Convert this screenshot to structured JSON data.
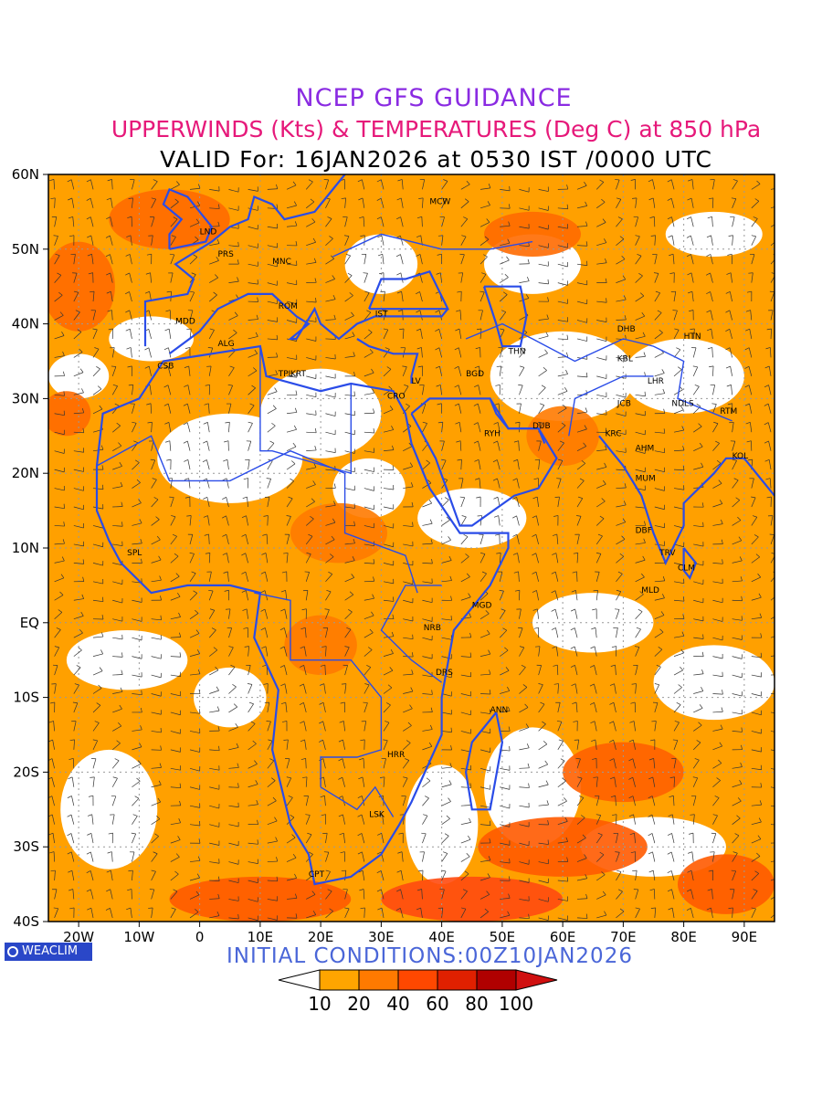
{
  "titles": {
    "line1": "NCEP GFS GUIDANCE",
    "line2": "UPPERWINDS (Kts) & TEMPERATURES (Deg C) at 850 hPa",
    "line3": "VALID For: 16JAN2026 at 0530 IST /0000 UTC"
  },
  "initial_conditions": "INITIAL CONDITIONS:00Z10JAN2026",
  "logo": "WEACLIM",
  "lat_labels": [
    "60N",
    "50N",
    "40N",
    "30N",
    "20N",
    "10N",
    "EQ",
    "10S",
    "20S",
    "30S",
    "40S"
  ],
  "lon_labels": [
    "20W",
    "10W",
    "0",
    "10E",
    "20E",
    "30E",
    "40E",
    "50E",
    "60E",
    "70E",
    "80E",
    "90E"
  ],
  "colorbar": {
    "labels": [
      "10",
      "20",
      "40",
      "60",
      "80",
      "100"
    ],
    "colors": [
      "#ffffff",
      "#ffa500",
      "#ff7a00",
      "#ff4800",
      "#e02000",
      "#b00000",
      "#d01010"
    ]
  },
  "colors": {
    "shade1": "#ffa000",
    "shade2": "#ff7000",
    "shade3": "#ff4a10",
    "coast": "#2a4ce8"
  },
  "stations": [
    {
      "name": "MCW",
      "lon": 38,
      "lat": 56
    },
    {
      "name": "LND",
      "lon": 0,
      "lat": 52
    },
    {
      "name": "PRS",
      "lon": 3,
      "lat": 49
    },
    {
      "name": "MNC",
      "lon": 12,
      "lat": 48
    },
    {
      "name": "ROM",
      "lon": 13,
      "lat": 42
    },
    {
      "name": "IST",
      "lon": 29,
      "lat": 41
    },
    {
      "name": "MDD",
      "lon": -4,
      "lat": 40
    },
    {
      "name": "ALG",
      "lon": 3,
      "lat": 37
    },
    {
      "name": "CSB",
      "lon": -7,
      "lat": 34
    },
    {
      "name": "TPL",
      "lon": 13,
      "lat": 33
    },
    {
      "name": "KRT",
      "lon": 15,
      "lat": 33
    },
    {
      "name": "CRO",
      "lon": 31,
      "lat": 30
    },
    {
      "name": "LV",
      "lon": 35,
      "lat": 32
    },
    {
      "name": "BGD",
      "lon": 44,
      "lat": 33
    },
    {
      "name": "THN",
      "lon": 51,
      "lat": 36
    },
    {
      "name": "DHB",
      "lon": 69,
      "lat": 39
    },
    {
      "name": "HTN",
      "lon": 80,
      "lat": 38
    },
    {
      "name": "KBL",
      "lon": 69,
      "lat": 35
    },
    {
      "name": "LHR",
      "lon": 74,
      "lat": 32
    },
    {
      "name": "JCB",
      "lon": 69,
      "lat": 29
    },
    {
      "name": "NDLS",
      "lon": 78,
      "lat": 29
    },
    {
      "name": "RTM",
      "lon": 86,
      "lat": 28
    },
    {
      "name": "RYH",
      "lon": 47,
      "lat": 25
    },
    {
      "name": "DUB",
      "lon": 55,
      "lat": 26
    },
    {
      "name": "KRC",
      "lon": 67,
      "lat": 25
    },
    {
      "name": "AHM",
      "lon": 72,
      "lat": 23
    },
    {
      "name": "KOL",
      "lon": 88,
      "lat": 22
    },
    {
      "name": "MUM",
      "lon": 72,
      "lat": 19
    },
    {
      "name": "DBF",
      "lon": 72,
      "lat": 12
    },
    {
      "name": "TRV",
      "lon": 76,
      "lat": 9
    },
    {
      "name": "CLM",
      "lon": 79,
      "lat": 7
    },
    {
      "name": "MLD",
      "lon": 73,
      "lat": 4
    },
    {
      "name": "SPL",
      "lon": -12,
      "lat": 9
    },
    {
      "name": "MGD",
      "lon": 45,
      "lat": 2
    },
    {
      "name": "NRB",
      "lon": 37,
      "lat": -1
    },
    {
      "name": "DRS",
      "lon": 39,
      "lat": -7
    },
    {
      "name": "ANN",
      "lon": 48,
      "lat": -12
    },
    {
      "name": "HRR",
      "lon": 31,
      "lat": -18
    },
    {
      "name": "LSK",
      "lon": 28,
      "lat": -26
    },
    {
      "name": "CPT",
      "lon": 18,
      "lat": -34
    }
  ]
}
